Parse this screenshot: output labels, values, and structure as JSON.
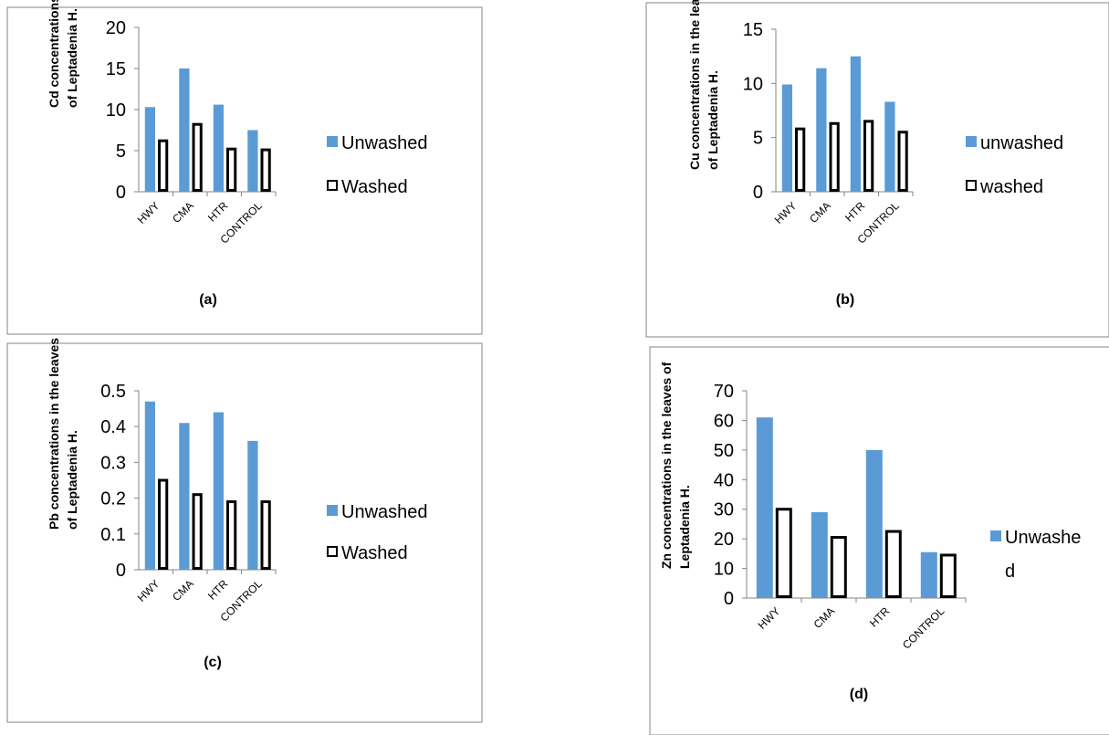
{
  "colors": {
    "unwashed": "#5b9bd5",
    "washed_fill": "#ffffff",
    "washed_stroke": "#000000"
  },
  "chart_data": [
    {
      "type": "bar",
      "caption": "(a)",
      "ylabel_lines": [
        "Cd concentrations in the leaves",
        "of Leptadenia H."
      ],
      "categories": [
        "HWY",
        "CMA",
        "HTR",
        "CONTROL"
      ],
      "ylim": [
        0,
        20
      ],
      "yticks": [
        "0",
        "5",
        "10",
        "15",
        "20"
      ],
      "series": [
        {
          "name": "Unwashed",
          "values": [
            10.3,
            15.0,
            10.6,
            7.5
          ]
        },
        {
          "name": "Washed",
          "values": [
            6.2,
            8.2,
            5.2,
            5.1
          ]
        }
      ],
      "legend_lines": [
        [
          "Unwashed"
        ],
        [
          "Washed"
        ]
      ],
      "legend": "right"
    },
    {
      "type": "bar",
      "caption": "(b)",
      "ylabel_lines": [
        "Cu concentrations in the leaves",
        "of Leptadenia H."
      ],
      "categories": [
        "HWY",
        "CMA",
        "HTR",
        "CONTROL"
      ],
      "ylim": [
        0,
        15
      ],
      "yticks": [
        "0",
        "5",
        "10",
        "15"
      ],
      "series": [
        {
          "name": "unwashed",
          "values": [
            9.9,
            11.4,
            12.5,
            8.3
          ]
        },
        {
          "name": "washed",
          "values": [
            5.8,
            6.3,
            6.5,
            5.5
          ]
        }
      ],
      "legend_lines": [
        [
          "unwashed"
        ],
        [
          "washed"
        ]
      ],
      "legend": "right"
    },
    {
      "type": "bar",
      "caption": "(c)",
      "ylabel_lines": [
        "Pb concentrations in the leaves",
        "of Leptadenia H."
      ],
      "categories": [
        "HWY",
        "CMA",
        "HTR",
        "CONTROL"
      ],
      "ylim": [
        0,
        0.5
      ],
      "yticks": [
        "0",
        "0.1",
        "0.2",
        "0.3",
        "0.4",
        "0.5"
      ],
      "series": [
        {
          "name": "Unwashed",
          "values": [
            0.47,
            0.41,
            0.44,
            0.36
          ]
        },
        {
          "name": "Washed",
          "values": [
            0.25,
            0.21,
            0.19,
            0.19
          ]
        }
      ],
      "legend_lines": [
        [
          "Unwashed"
        ],
        [
          "Washed"
        ]
      ],
      "legend": "right"
    },
    {
      "type": "bar",
      "caption": "(d)",
      "ylabel_lines": [
        "Zn  concentrations in the leaves of",
        "Leptadenia H."
      ],
      "categories": [
        "HWY",
        "CMA",
        "HTR",
        "CONTROL"
      ],
      "ylim": [
        0,
        70
      ],
      "yticks": [
        "0",
        "10",
        "20",
        "30",
        "40",
        "50",
        "60",
        "70"
      ],
      "series": [
        {
          "name": "Unwashed",
          "values": [
            61,
            29,
            50,
            15.5
          ]
        },
        {
          "name": "Washed",
          "values": [
            30,
            20.5,
            22.5,
            14.5
          ]
        }
      ],
      "legend_lines": [
        [
          "Unwashe",
          "d"
        ]
      ],
      "legend": "right"
    }
  ]
}
